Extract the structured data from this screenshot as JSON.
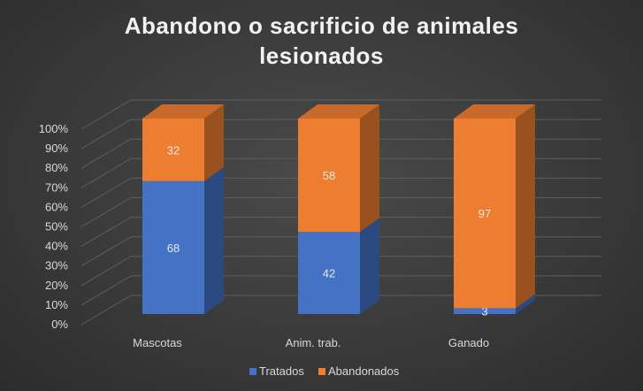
{
  "chart_data": {
    "type": "bar",
    "stacked": "percent",
    "style": "3d-column",
    "title_lines": [
      "Abandono o sacrificio de animales",
      "lesionados"
    ],
    "categories": [
      "Mascotas",
      "Anim. trab.",
      "Ganado"
    ],
    "series": [
      {
        "name": "Tratados",
        "values": [
          68,
          42,
          3
        ],
        "color": "#4472c4"
      },
      {
        "name": "Abandonados",
        "values": [
          32,
          58,
          97
        ],
        "color": "#ed7d31"
      }
    ],
    "y_ticks": [
      "0%",
      "10%",
      "20%",
      "30%",
      "40%",
      "50%",
      "60%",
      "70%",
      "80%",
      "90%",
      "100%"
    ],
    "ylim": [
      0,
      100
    ],
    "grid": true,
    "legend_position": "bottom",
    "data_labels": true
  }
}
